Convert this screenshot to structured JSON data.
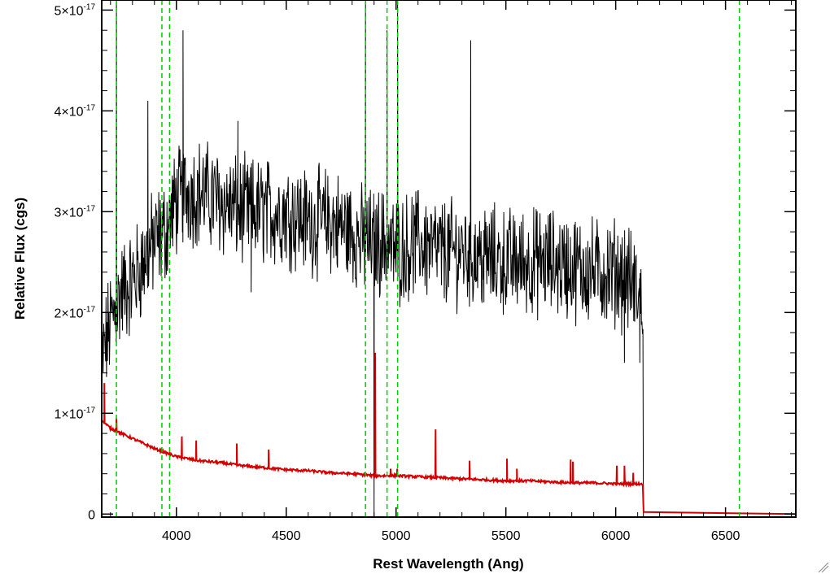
{
  "chart_data": {
    "type": "line",
    "title": "",
    "xlabel": "Rest Wavelength (Ang)",
    "ylabel": "Relative Flux (cgs)",
    "xlim": [
      3660,
      6820
    ],
    "ylim": [
      -0.03,
      5.1
    ],
    "y_unit_exponent": "-17",
    "grid": false,
    "x_ticks": [
      {
        "value": 4000,
        "label": "4000"
      },
      {
        "value": 4500,
        "label": "4500"
      },
      {
        "value": 5000,
        "label": "5000"
      },
      {
        "value": 5500,
        "label": "5500"
      },
      {
        "value": 6000,
        "label": "6000"
      },
      {
        "value": 6500,
        "label": "6500"
      }
    ],
    "y_ticks": [
      {
        "value": 0,
        "label": "0",
        "exp": ""
      },
      {
        "value": 1,
        "label": "1×10",
        "exp": "-17"
      },
      {
        "value": 2,
        "label": "2×10",
        "exp": "-17"
      },
      {
        "value": 3,
        "label": "3×10",
        "exp": "-17"
      },
      {
        "value": 4,
        "label": "4×10",
        "exp": "-17"
      },
      {
        "value": 5,
        "label": "5×10",
        "exp": "-17"
      }
    ],
    "vertical_lines": {
      "color": "#00cc00",
      "style": "dashed",
      "x": [
        3727,
        3934,
        3969,
        4861,
        4959,
        5007,
        6563
      ]
    },
    "series": [
      {
        "color": "#000000",
        "smooth_x": [
          3660,
          3700,
          3750,
          3800,
          3850,
          3900,
          3950,
          4000,
          4050,
          4100,
          4200,
          4300,
          4400,
          4500,
          4600,
          4700,
          4800,
          4850,
          4900,
          4950,
          5000,
          5100,
          5200,
          5300,
          5400,
          5500,
          5600,
          5700,
          5800,
          5900,
          6000,
          6050,
          6100,
          6120,
          6125
        ],
        "smooth_y": [
          1.5,
          1.9,
          2.2,
          2.3,
          2.5,
          2.7,
          2.8,
          3.1,
          3.2,
          3.2,
          3.1,
          3.0,
          3.0,
          3.0,
          2.9,
          2.9,
          2.8,
          2.7,
          2.7,
          2.7,
          2.6,
          2.7,
          2.6,
          2.6,
          2.55,
          2.5,
          2.5,
          2.5,
          2.45,
          2.4,
          2.4,
          2.35,
          2.2,
          2.1,
          2.1
        ],
        "spikes": [
          [
            3727,
            5.2
          ],
          [
            3870,
            4.1
          ],
          [
            4030,
            4.8
          ],
          [
            4280,
            3.9
          ],
          [
            4861,
            5.2
          ],
          [
            4959,
            4.8
          ],
          [
            5007,
            5.2
          ],
          [
            5340,
            4.7
          ]
        ],
        "dips": [
          [
            4340,
            2.2
          ],
          [
            4900,
            -0.1
          ],
          [
            5400,
            2.1
          ],
          [
            6040,
            1.5
          ],
          [
            6110,
            1.5
          ]
        ],
        "end_x": 6125
      },
      {
        "color": "#d40000",
        "smooth_x": [
          3660,
          3700,
          3750,
          3800,
          3900,
          4000,
          4100,
          4200,
          4300,
          4400,
          4500,
          4600,
          4700,
          4800,
          4900,
          5000,
          5100,
          5200,
          5300,
          5400,
          5500,
          5600,
          5700,
          5800,
          5900,
          6000,
          6100,
          6125
        ],
        "smooth_y": [
          0.93,
          0.85,
          0.8,
          0.75,
          0.65,
          0.57,
          0.53,
          0.51,
          0.48,
          0.46,
          0.44,
          0.43,
          0.41,
          0.4,
          0.38,
          0.38,
          0.37,
          0.36,
          0.35,
          0.34,
          0.33,
          0.33,
          0.32,
          0.31,
          0.31,
          0.3,
          0.3,
          0.3
        ],
        "spikes": [
          [
            3672,
            1.3
          ],
          [
            3727,
            0.95
          ],
          [
            4025,
            0.77
          ],
          [
            4090,
            0.73
          ],
          [
            4275,
            0.7
          ],
          [
            4420,
            0.64
          ],
          [
            4905,
            1.6
          ],
          [
            4975,
            0.45
          ],
          [
            5005,
            0.45
          ],
          [
            5180,
            0.84
          ],
          [
            5335,
            0.53
          ],
          [
            5505,
            0.55
          ],
          [
            5550,
            0.45
          ],
          [
            5795,
            0.54
          ],
          [
            5805,
            0.52
          ],
          [
            6005,
            0.48
          ],
          [
            6040,
            0.48
          ],
          [
            6080,
            0.41
          ]
        ],
        "end_x": 6125,
        "tail": [
          [
            6127,
            0.02
          ],
          [
            6820,
            0.0
          ]
        ]
      }
    ]
  }
}
